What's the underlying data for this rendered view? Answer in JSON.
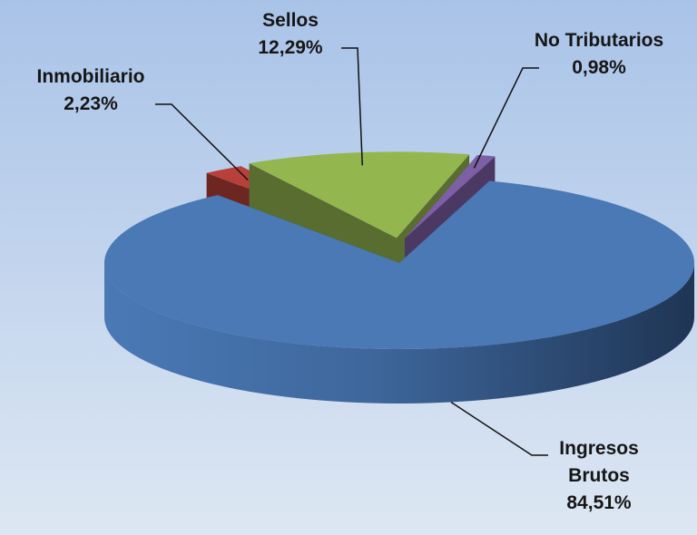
{
  "chart_data": {
    "type": "pie",
    "categories": [
      "Inmobiliario",
      "Sellos",
      "No Tributarios",
      "Ingresos Brutos"
    ],
    "values": [
      2.23,
      12.29,
      0.98,
      84.51
    ],
    "value_labels": [
      "2,23%",
      "12,29%",
      "0,98%",
      "84,51%"
    ],
    "colors": [
      "#b8403a",
      "#93b64f",
      "#7d5fa6",
      "#4a79b5"
    ]
  }
}
